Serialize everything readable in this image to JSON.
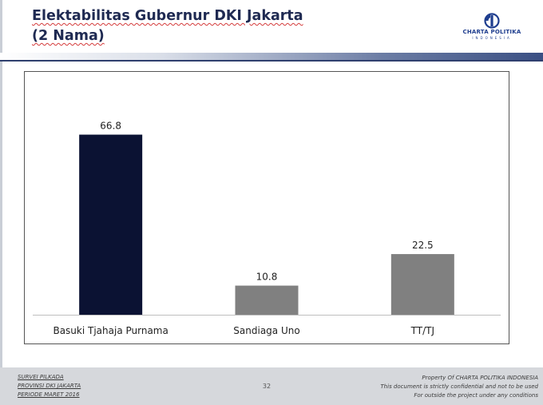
{
  "header": {
    "title_line1": "Elektabilitas Gubernur DKI Jakarta",
    "title_line2": "(2 Nama)",
    "logo_name": "CHARTA POLITIKA",
    "logo_sub": "INDONESIA"
  },
  "chart_data": {
    "type": "bar",
    "categories": [
      "Basuki Tjahaja Purnama",
      "Sandiaga Uno",
      "TT/TJ"
    ],
    "values": [
      66.8,
      10.8,
      22.5
    ],
    "value_labels": [
      "66.8",
      "10.8",
      "22.5"
    ],
    "bar_colors": [
      "#0b1233",
      "#808080",
      "#808080"
    ],
    "title": "",
    "xlabel": "",
    "ylabel": "",
    "ylim": [
      0,
      80
    ],
    "grid": false,
    "legend": "none"
  },
  "footer": {
    "left_lines": [
      "SURVEI PILKADA",
      "PROVINSI DKI JAKARTA",
      "PERIODE  MARET 2016"
    ],
    "page_number": "32",
    "right_lines": [
      "Property Of CHARTA POLITIKA INDONESIA",
      "This document is strictly confidential and not to be used",
      "For  outside the project under any conditions"
    ]
  },
  "colors": {
    "title": "#1f2a52",
    "accent": "#2f3f6e",
    "footer_bg": "#d6d8dc"
  }
}
